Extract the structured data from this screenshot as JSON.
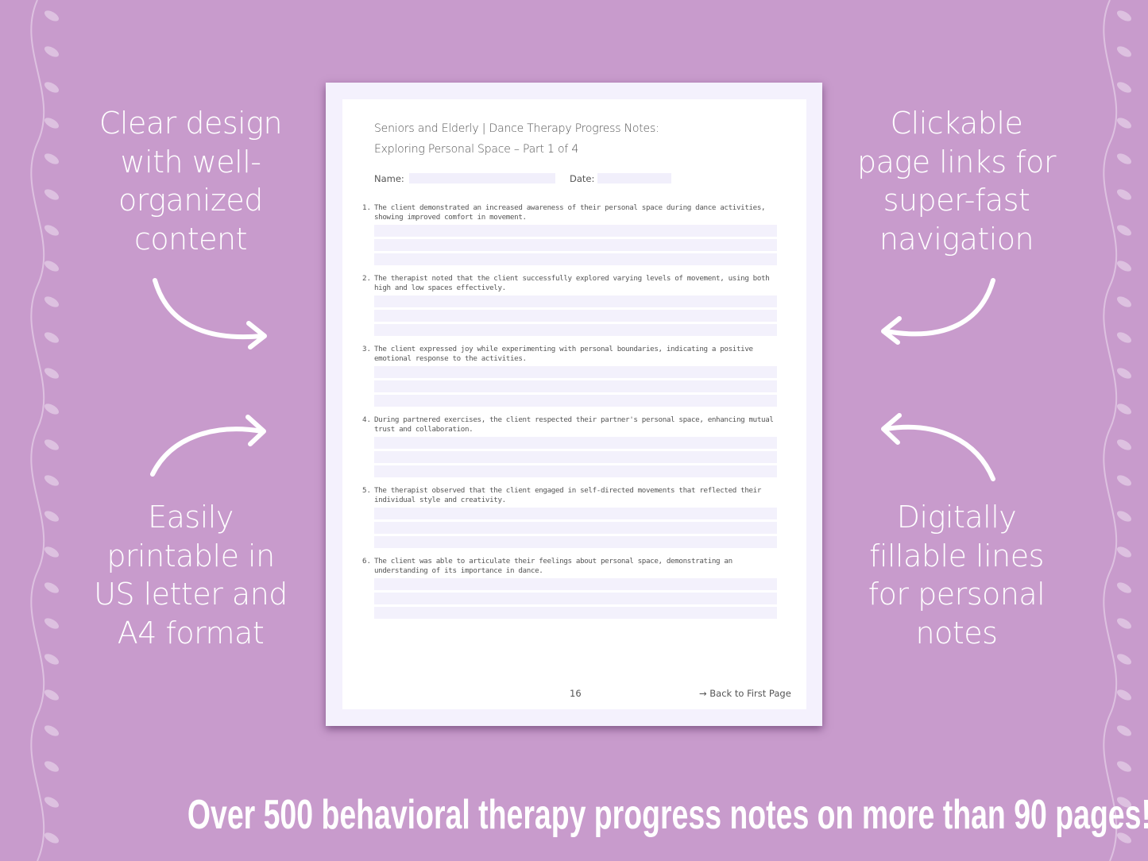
{
  "colors": {
    "background": "#c89bcc",
    "page_border": "#f4f1fd",
    "fill_line": "#f3f1fc",
    "text": "#555555"
  },
  "features": {
    "top_left": [
      "Clear design",
      "with well-",
      "organized",
      "content"
    ],
    "bottom_left": [
      "Easily",
      "printable in",
      "US letter and",
      "A4 format"
    ],
    "top_right": [
      "Clickable",
      "page links for",
      "super-fast",
      "navigation"
    ],
    "bottom_right": [
      "Digitally",
      "fillable lines",
      "for personal",
      "notes"
    ]
  },
  "document": {
    "title_line1": "Seniors and Elderly | Dance Therapy Progress Notes:",
    "title_line2": "Exploring Personal Space – Part 1 of 4",
    "name_label": "Name:",
    "date_label": "Date:",
    "items": [
      {
        "num": "1.",
        "text": "The client demonstrated an increased awareness of their personal space during dance activities, showing improved comfort in movement."
      },
      {
        "num": "2.",
        "text": "The therapist noted that the client successfully explored varying levels of movement, using both high and low spaces effectively."
      },
      {
        "num": "3.",
        "text": "The client expressed joy while experimenting with personal boundaries, indicating a positive emotional response to the activities."
      },
      {
        "num": "4.",
        "text": "During partnered exercises, the client respected their partner's personal space, enhancing mutual trust and collaboration."
      },
      {
        "num": "5.",
        "text": "The therapist observed that the client engaged in self-directed movements that reflected their individual style and creativity."
      },
      {
        "num": "6.",
        "text": "The client was able to articulate their feelings about personal space, demonstrating an understanding of its importance in dance."
      }
    ],
    "page_number": "16",
    "back_link": "→ Back to First Page"
  },
  "banner": "Over 500 behavioral therapy progress notes on more than 90 pages!"
}
